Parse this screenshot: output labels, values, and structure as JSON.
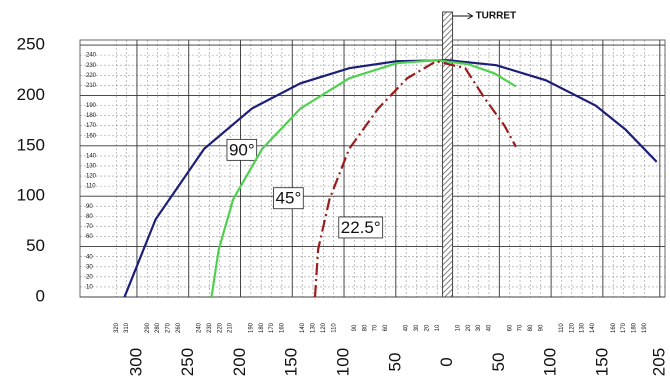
{
  "chart_data": {
    "type": "line",
    "turret_label": "TURRET",
    "xlim": [
      -355,
      210
    ],
    "ylim": [
      0,
      255
    ],
    "yticks": [
      0,
      50,
      100,
      150,
      200,
      250
    ],
    "y_minor_ticks": [
      10,
      20,
      30,
      40,
      60,
      70,
      80,
      90,
      110,
      120,
      130,
      140,
      160,
      170,
      180,
      190,
      210,
      220,
      230,
      240
    ],
    "xticks": [
      {
        "value": -300,
        "label": "300"
      },
      {
        "value": -250,
        "label": "250"
      },
      {
        "value": -200,
        "label": "200"
      },
      {
        "value": -150,
        "label": "150"
      },
      {
        "value": -100,
        "label": "100"
      },
      {
        "value": -50,
        "label": "50"
      },
      0,
      50,
      100,
      150,
      205
    ],
    "x_minor_ticks": [
      {
        "value": -320,
        "label": "320"
      },
      {
        "value": -310,
        "label": "310"
      },
      {
        "value": -290,
        "label": "290"
      },
      {
        "value": -280,
        "label": "280"
      },
      {
        "value": -270,
        "label": "270"
      },
      {
        "value": -260,
        "label": "260"
      },
      {
        "value": -240,
        "label": "240"
      },
      {
        "value": -230,
        "label": "230"
      },
      {
        "value": -220,
        "label": "220"
      },
      {
        "value": -210,
        "label": "210"
      },
      {
        "value": -190,
        "label": "190"
      },
      {
        "value": -180,
        "label": "180"
      },
      {
        "value": -170,
        "label": "170"
      },
      {
        "value": -160,
        "label": "160"
      },
      {
        "value": -140,
        "label": "140"
      },
      {
        "value": -130,
        "label": "130"
      },
      {
        "value": -120,
        "label": "120"
      },
      {
        "value": -110,
        "label": "110"
      },
      {
        "value": -90,
        "label": "90"
      },
      {
        "value": -80,
        "label": "80"
      },
      {
        "value": -70,
        "label": "70"
      },
      {
        "value": -60,
        "label": "60"
      },
      {
        "value": -40,
        "label": "40"
      },
      {
        "value": -30,
        "label": "30"
      },
      {
        "value": -20,
        "label": "20"
      },
      {
        "value": -10,
        "label": "10"
      },
      10,
      20,
      30,
      40,
      60,
      70,
      80,
      90,
      110,
      120,
      130,
      140,
      160,
      170,
      180,
      190
    ],
    "grid": true,
    "series": [
      {
        "name": "90°",
        "color": "#1c1f7a",
        "dash": "solid",
        "x": [
          -312,
          -282,
          -235,
          -189,
          -142,
          -95,
          -49,
          0,
          47,
          95,
          143,
          172,
          202
        ],
        "values": [
          0,
          77,
          147,
          187,
          212,
          227,
          234,
          235,
          230,
          215,
          190,
          166,
          134
        ]
      },
      {
        "name": "45°",
        "color": "#4fd14f",
        "dash": "solid",
        "x": [
          -228,
          -221,
          -207,
          -179,
          -142,
          -95,
          -49,
          -11,
          20,
          45,
          66
        ],
        "values": [
          0,
          47,
          97,
          147,
          187,
          217,
          232,
          235,
          231,
          222,
          209
        ]
      },
      {
        "name": "22.5°",
        "color": "#9b1c1c",
        "dash": "dashdot",
        "x": [
          -128,
          -125,
          -114,
          -95,
          -67,
          -39,
          -11,
          17,
          36,
          55,
          66
        ],
        "values": [
          0,
          47,
          97,
          147,
          187,
          217,
          234,
          227,
          197,
          170,
          149
        ]
      }
    ]
  }
}
